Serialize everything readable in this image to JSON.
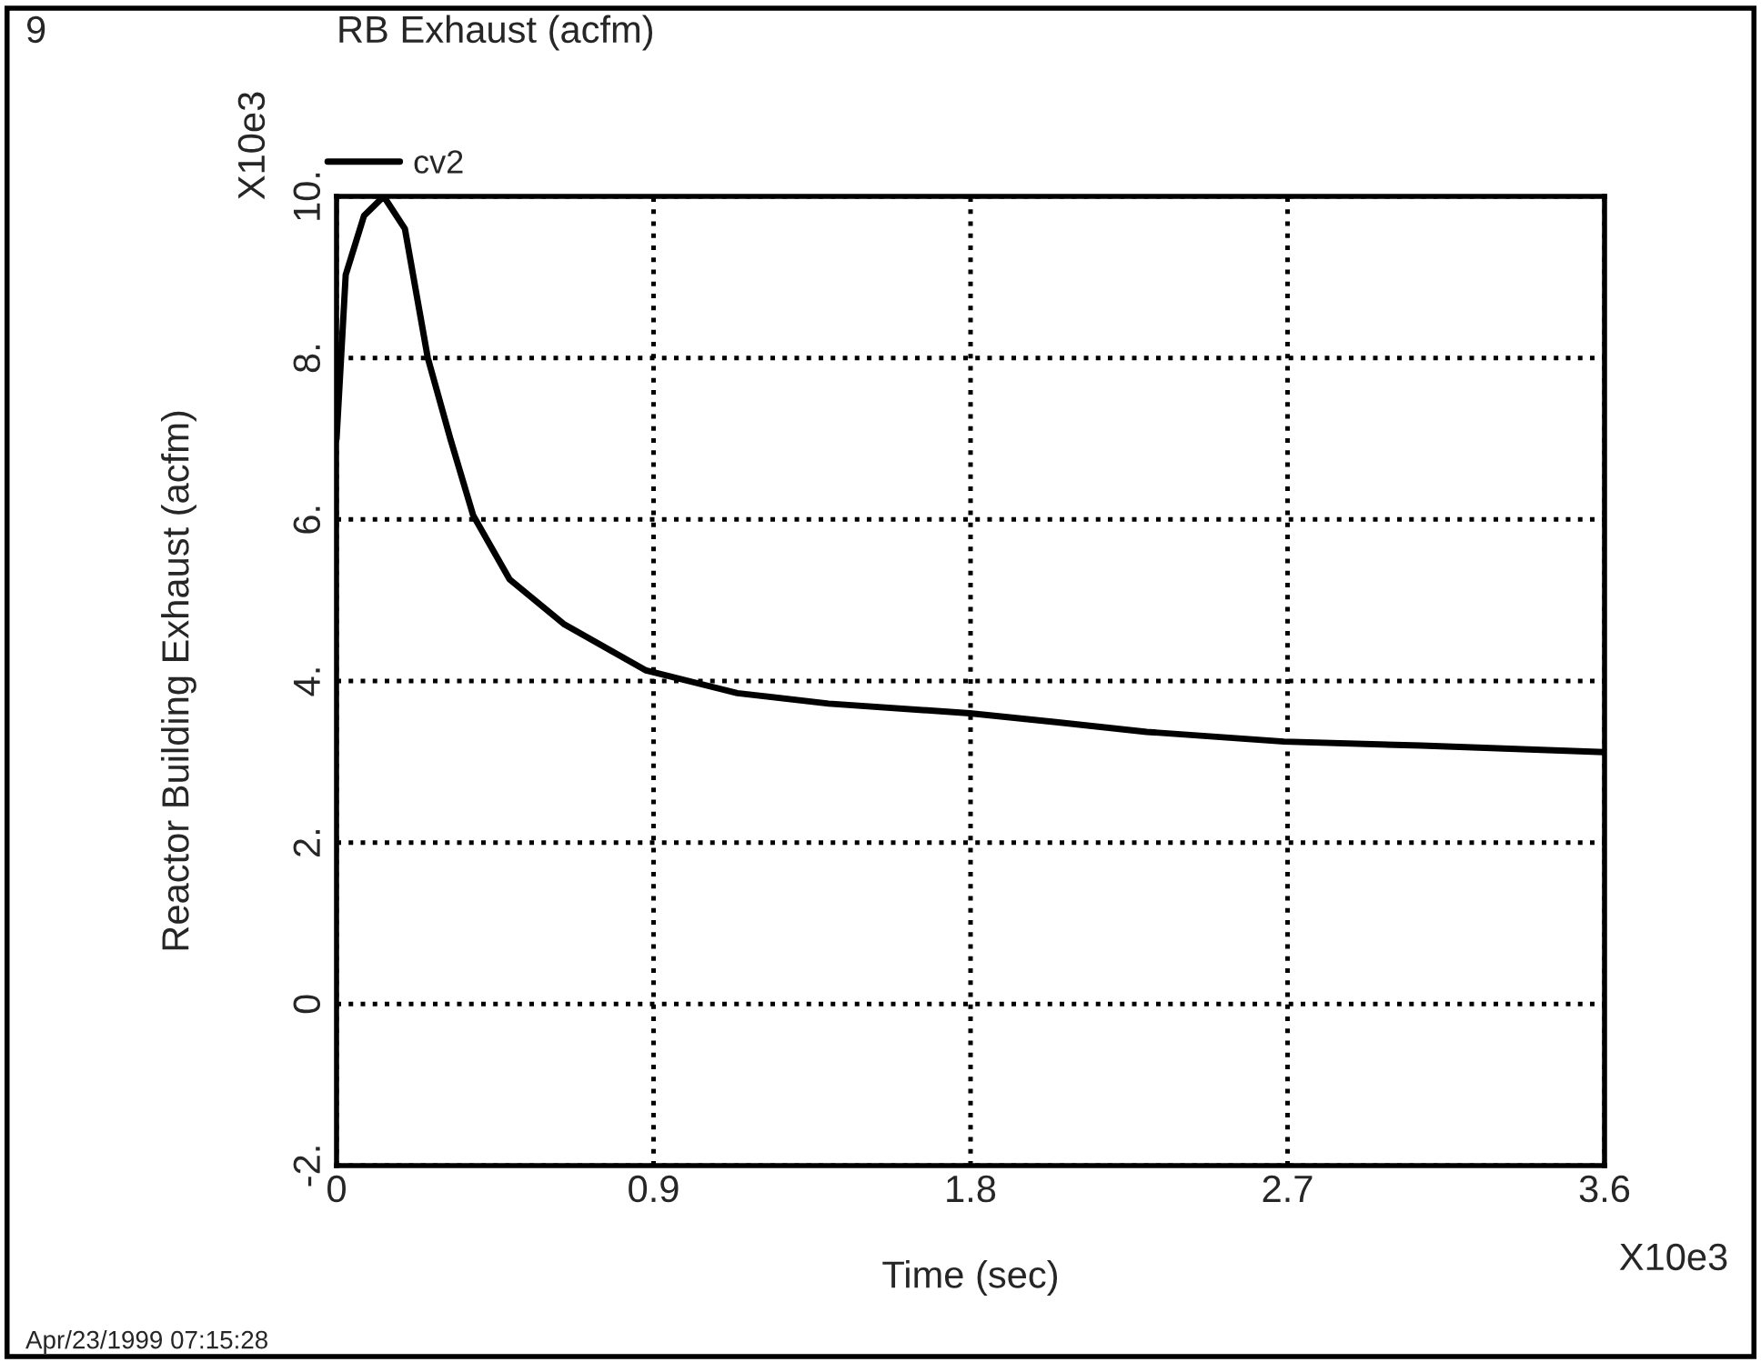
{
  "chart_data": {
    "type": "line",
    "title": "RB Exhaust (acfm)",
    "xlabel": "Time (sec)",
    "ylabel": "Reactor Building Exhaust (acfm)",
    "annotations": [
      "9",
      "X10e3",
      "X10e3",
      "Apr/23/1999 07:15:28"
    ],
    "series": [
      {
        "name": "cv2",
        "color": "#000000",
        "x": [
          0,
          0.026,
          0.078,
          0.134,
          0.194,
          0.259,
          0.323,
          0.388,
          0.491,
          0.647,
          0.879,
          1.138,
          1.397,
          1.798,
          2.043,
          2.3,
          2.69,
          3.08,
          3.6
        ],
        "values": [
          7.0,
          9.03,
          9.76,
          10.0,
          9.6,
          8.0,
          7.0,
          6.05,
          5.26,
          4.7,
          4.13,
          3.85,
          3.72,
          3.6,
          3.49,
          3.37,
          3.25,
          3.2,
          3.12
        ]
      }
    ],
    "xlim": [
      0,
      3.6
    ],
    "ylim": [
      -2,
      10
    ],
    "xticks": [
      0,
      0.9,
      1.8,
      2.7,
      3.6
    ],
    "yticks": [
      {
        "value": -2,
        "label": "-2."
      },
      0,
      {
        "value": 2,
        "label": "2."
      },
      {
        "value": 4,
        "label": "4."
      },
      {
        "value": 6,
        "label": "6."
      },
      {
        "value": 8,
        "label": "8."
      },
      {
        "value": 10,
        "label": "10."
      }
    ],
    "grid": true,
    "legend": "top left",
    "line_style": "solid"
  }
}
